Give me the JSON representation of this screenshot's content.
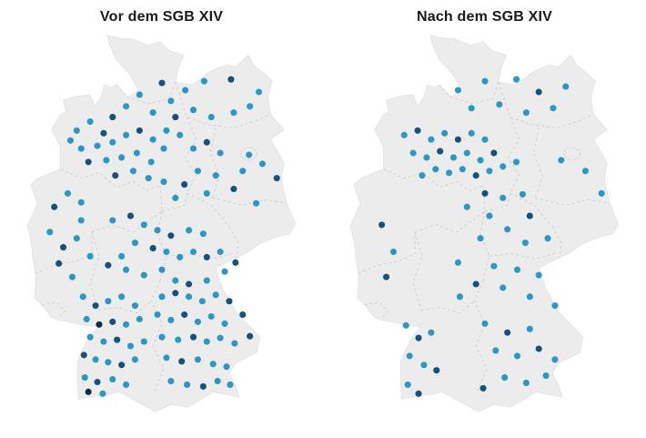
{
  "page": {
    "background": "#ffffff"
  },
  "chart_data": {
    "type": "scatter",
    "subtype": "dot-density-map",
    "map_region": "Germany with dashed federal state borders",
    "coordinate_system": "map viewBox pixels, x 0-300 (west-east), y 0-430 (north-south)",
    "point_radius": 3.6,
    "colors": {
      "light": "#2b97c4",
      "dark": "#14527c",
      "darkest": "#0c2d49"
    },
    "color_codes": [
      "light",
      "dark",
      "darkest"
    ],
    "panels": [
      {
        "title": "Vor dem SGB XIV",
        "points": [
          [
            125,
            75,
            0
          ],
          [
            150,
            62,
            1
          ],
          [
            160,
            82,
            0
          ],
          [
            176,
            70,
            0
          ],
          [
            197,
            60,
            0
          ],
          [
            227,
            58,
            1
          ],
          [
            258,
            72,
            0
          ],
          [
            140,
            95,
            0
          ],
          [
            165,
            100,
            1
          ],
          [
            185,
            92,
            0
          ],
          [
            205,
            100,
            0
          ],
          [
            110,
            88,
            0
          ],
          [
            95,
            100,
            1
          ],
          [
            230,
            95,
            0
          ],
          [
            248,
            88,
            0
          ],
          [
            55,
            115,
            0
          ],
          [
            70,
            105,
            0
          ],
          [
            85,
            118,
            1
          ],
          [
            60,
            135,
            0
          ],
          [
            78,
            132,
            0
          ],
          [
            95,
            128,
            0
          ],
          [
            110,
            120,
            0
          ],
          [
            125,
            115,
            1
          ],
          [
            140,
            125,
            0
          ],
          [
            68,
            150,
            1
          ],
          [
            88,
            148,
            0
          ],
          [
            105,
            145,
            0
          ],
          [
            122,
            140,
            0
          ],
          [
            138,
            150,
            0
          ],
          [
            152,
            135,
            0
          ],
          [
            48,
            126,
            0
          ],
          [
            155,
            115,
            0
          ],
          [
            170,
            120,
            0
          ],
          [
            118,
            160,
            0
          ],
          [
            98,
            165,
            1
          ],
          [
            135,
            168,
            0
          ],
          [
            185,
            135,
            0
          ],
          [
            200,
            128,
            1
          ],
          [
            215,
            140,
            0
          ],
          [
            247,
            142,
            0
          ],
          [
            262,
            152,
            0
          ],
          [
            190,
            160,
            0
          ],
          [
            210,
            165,
            0
          ],
          [
            175,
            175,
            1
          ],
          [
            152,
            172,
            0
          ],
          [
            165,
            190,
            0
          ],
          [
            200,
            185,
            0
          ],
          [
            230,
            180,
            1
          ],
          [
            278,
            168,
            1
          ],
          [
            255,
            196,
            0
          ],
          [
            240,
            160,
            0
          ],
          [
            30,
            200,
            1
          ],
          [
            45,
            185,
            0
          ],
          [
            60,
            195,
            0
          ],
          [
            25,
            228,
            0
          ],
          [
            40,
            245,
            1
          ],
          [
            55,
            235,
            0
          ],
          [
            35,
            263,
            1
          ],
          [
            50,
            278,
            0
          ],
          [
            70,
            255,
            0
          ],
          [
            60,
            215,
            0
          ],
          [
            95,
            215,
            0
          ],
          [
            115,
            210,
            1
          ],
          [
            130,
            220,
            0
          ],
          [
            145,
            226,
            0
          ],
          [
            160,
            232,
            1
          ],
          [
            180,
            226,
            0
          ],
          [
            196,
            230,
            0
          ],
          [
            120,
            240,
            0
          ],
          [
            140,
            246,
            1
          ],
          [
            155,
            250,
            0
          ],
          [
            170,
            256,
            0
          ],
          [
            185,
            250,
            0
          ],
          [
            200,
            256,
            1
          ],
          [
            215,
            250,
            0
          ],
          [
            105,
            255,
            0
          ],
          [
            90,
            265,
            1
          ],
          [
            110,
            270,
            0
          ],
          [
            130,
            276,
            0
          ],
          [
            150,
            270,
            0
          ],
          [
            165,
            282,
            0
          ],
          [
            180,
            286,
            1
          ],
          [
            200,
            282,
            0
          ],
          [
            220,
            272,
            0
          ],
          [
            232,
            262,
            1
          ],
          [
            62,
            300,
            0
          ],
          [
            76,
            310,
            1
          ],
          [
            90,
            305,
            0
          ],
          [
            105,
            300,
            0
          ],
          [
            120,
            310,
            0
          ],
          [
            66,
            325,
            0
          ],
          [
            80,
            331,
            2
          ],
          [
            95,
            328,
            1
          ],
          [
            110,
            331,
            0
          ],
          [
            125,
            325,
            0
          ],
          [
            70,
            345,
            0
          ],
          [
            85,
            350,
            0
          ],
          [
            100,
            348,
            1
          ],
          [
            115,
            355,
            0
          ],
          [
            130,
            350,
            0
          ],
          [
            63,
            365,
            1
          ],
          [
            76,
            370,
            0
          ],
          [
            90,
            373,
            0
          ],
          [
            105,
            376,
            1
          ],
          [
            120,
            370,
            0
          ],
          [
            64,
            390,
            0
          ],
          [
            78,
            395,
            1
          ],
          [
            95,
            392,
            0
          ],
          [
            110,
            398,
            0
          ],
          [
            68,
            406,
            2
          ],
          [
            84,
            408,
            0
          ],
          [
            150,
            300,
            0
          ],
          [
            165,
            296,
            1
          ],
          [
            180,
            300,
            0
          ],
          [
            195,
            305,
            0
          ],
          [
            210,
            298,
            0
          ],
          [
            225,
            305,
            1
          ],
          [
            145,
            320,
            0
          ],
          [
            160,
            326,
            0
          ],
          [
            175,
            320,
            1
          ],
          [
            190,
            328,
            0
          ],
          [
            205,
            322,
            0
          ],
          [
            220,
            330,
            0
          ],
          [
            240,
            320,
            1
          ],
          [
            150,
            345,
            0
          ],
          [
            168,
            348,
            0
          ],
          [
            185,
            345,
            1
          ],
          [
            200,
            350,
            0
          ],
          [
            215,
            346,
            0
          ],
          [
            231,
            352,
            0
          ],
          [
            248,
            344,
            1
          ],
          [
            155,
            368,
            0
          ],
          [
            172,
            372,
            1
          ],
          [
            190,
            370,
            0
          ],
          [
            207,
            375,
            0
          ],
          [
            222,
            378,
            0
          ],
          [
            160,
            394,
            0
          ],
          [
            178,
            398,
            0
          ],
          [
            196,
            400,
            1
          ],
          [
            212,
            394,
            0
          ],
          [
            226,
            398,
            0
          ]
        ]
      },
      {
        "title": "Nach dem SGB XIV",
        "points": [
          [
            120,
            70,
            0
          ],
          [
            150,
            60,
            0
          ],
          [
            185,
            58,
            0
          ],
          [
            210,
            72,
            1
          ],
          [
            240,
            66,
            0
          ],
          [
            135,
            90,
            0
          ],
          [
            166,
            86,
            0
          ],
          [
            196,
            95,
            0
          ],
          [
            226,
            90,
            0
          ],
          [
            60,
            120,
            0
          ],
          [
            75,
            115,
            1
          ],
          [
            90,
            125,
            0
          ],
          [
            105,
            118,
            0
          ],
          [
            120,
            125,
            1
          ],
          [
            135,
            118,
            0
          ],
          [
            150,
            125,
            0
          ],
          [
            70,
            140,
            0
          ],
          [
            85,
            145,
            0
          ],
          [
            100,
            138,
            1
          ],
          [
            115,
            145,
            0
          ],
          [
            130,
            140,
            0
          ],
          [
            145,
            148,
            0
          ],
          [
            160,
            140,
            1
          ],
          [
            95,
            158,
            0
          ],
          [
            110,
            162,
            0
          ],
          [
            125,
            158,
            0
          ],
          [
            140,
            165,
            1
          ],
          [
            155,
            160,
            0
          ],
          [
            170,
            155,
            0
          ],
          [
            185,
            150,
            0
          ],
          [
            80,
            165,
            0
          ],
          [
            235,
            148,
            0
          ],
          [
            262,
            160,
            0
          ],
          [
            280,
            185,
            0
          ],
          [
            150,
            185,
            1
          ],
          [
            170,
            190,
            0
          ],
          [
            192,
            186,
            0
          ],
          [
            130,
            200,
            0
          ],
          [
            155,
            210,
            0
          ],
          [
            200,
            210,
            1
          ],
          [
            175,
            225,
            0
          ],
          [
            145,
            235,
            0
          ],
          [
            195,
            240,
            0
          ],
          [
            220,
            235,
            0
          ],
          [
            35,
            220,
            1
          ],
          [
            48,
            250,
            0
          ],
          [
            40,
            278,
            1
          ],
          [
            120,
            262,
            0
          ],
          [
            160,
            266,
            0
          ],
          [
            186,
            270,
            0
          ],
          [
            210,
            276,
            0
          ],
          [
            140,
            286,
            1
          ],
          [
            170,
            290,
            0
          ],
          [
            122,
            300,
            0
          ],
          [
            200,
            300,
            0
          ],
          [
            228,
            310,
            0
          ],
          [
            62,
            332,
            0
          ],
          [
            76,
            346,
            1
          ],
          [
            90,
            340,
            0
          ],
          [
            66,
            366,
            0
          ],
          [
            82,
            376,
            0
          ],
          [
            96,
            382,
            1
          ],
          [
            64,
            398,
            0
          ],
          [
            76,
            408,
            1
          ],
          [
            150,
            330,
            0
          ],
          [
            175,
            340,
            1
          ],
          [
            200,
            336,
            0
          ],
          [
            162,
            360,
            0
          ],
          [
            186,
            366,
            0
          ],
          [
            210,
            358,
            1
          ],
          [
            228,
            370,
            0
          ],
          [
            172,
            390,
            0
          ],
          [
            196,
            396,
            0
          ],
          [
            218,
            388,
            0
          ],
          [
            148,
            402,
            1
          ]
        ]
      }
    ]
  }
}
